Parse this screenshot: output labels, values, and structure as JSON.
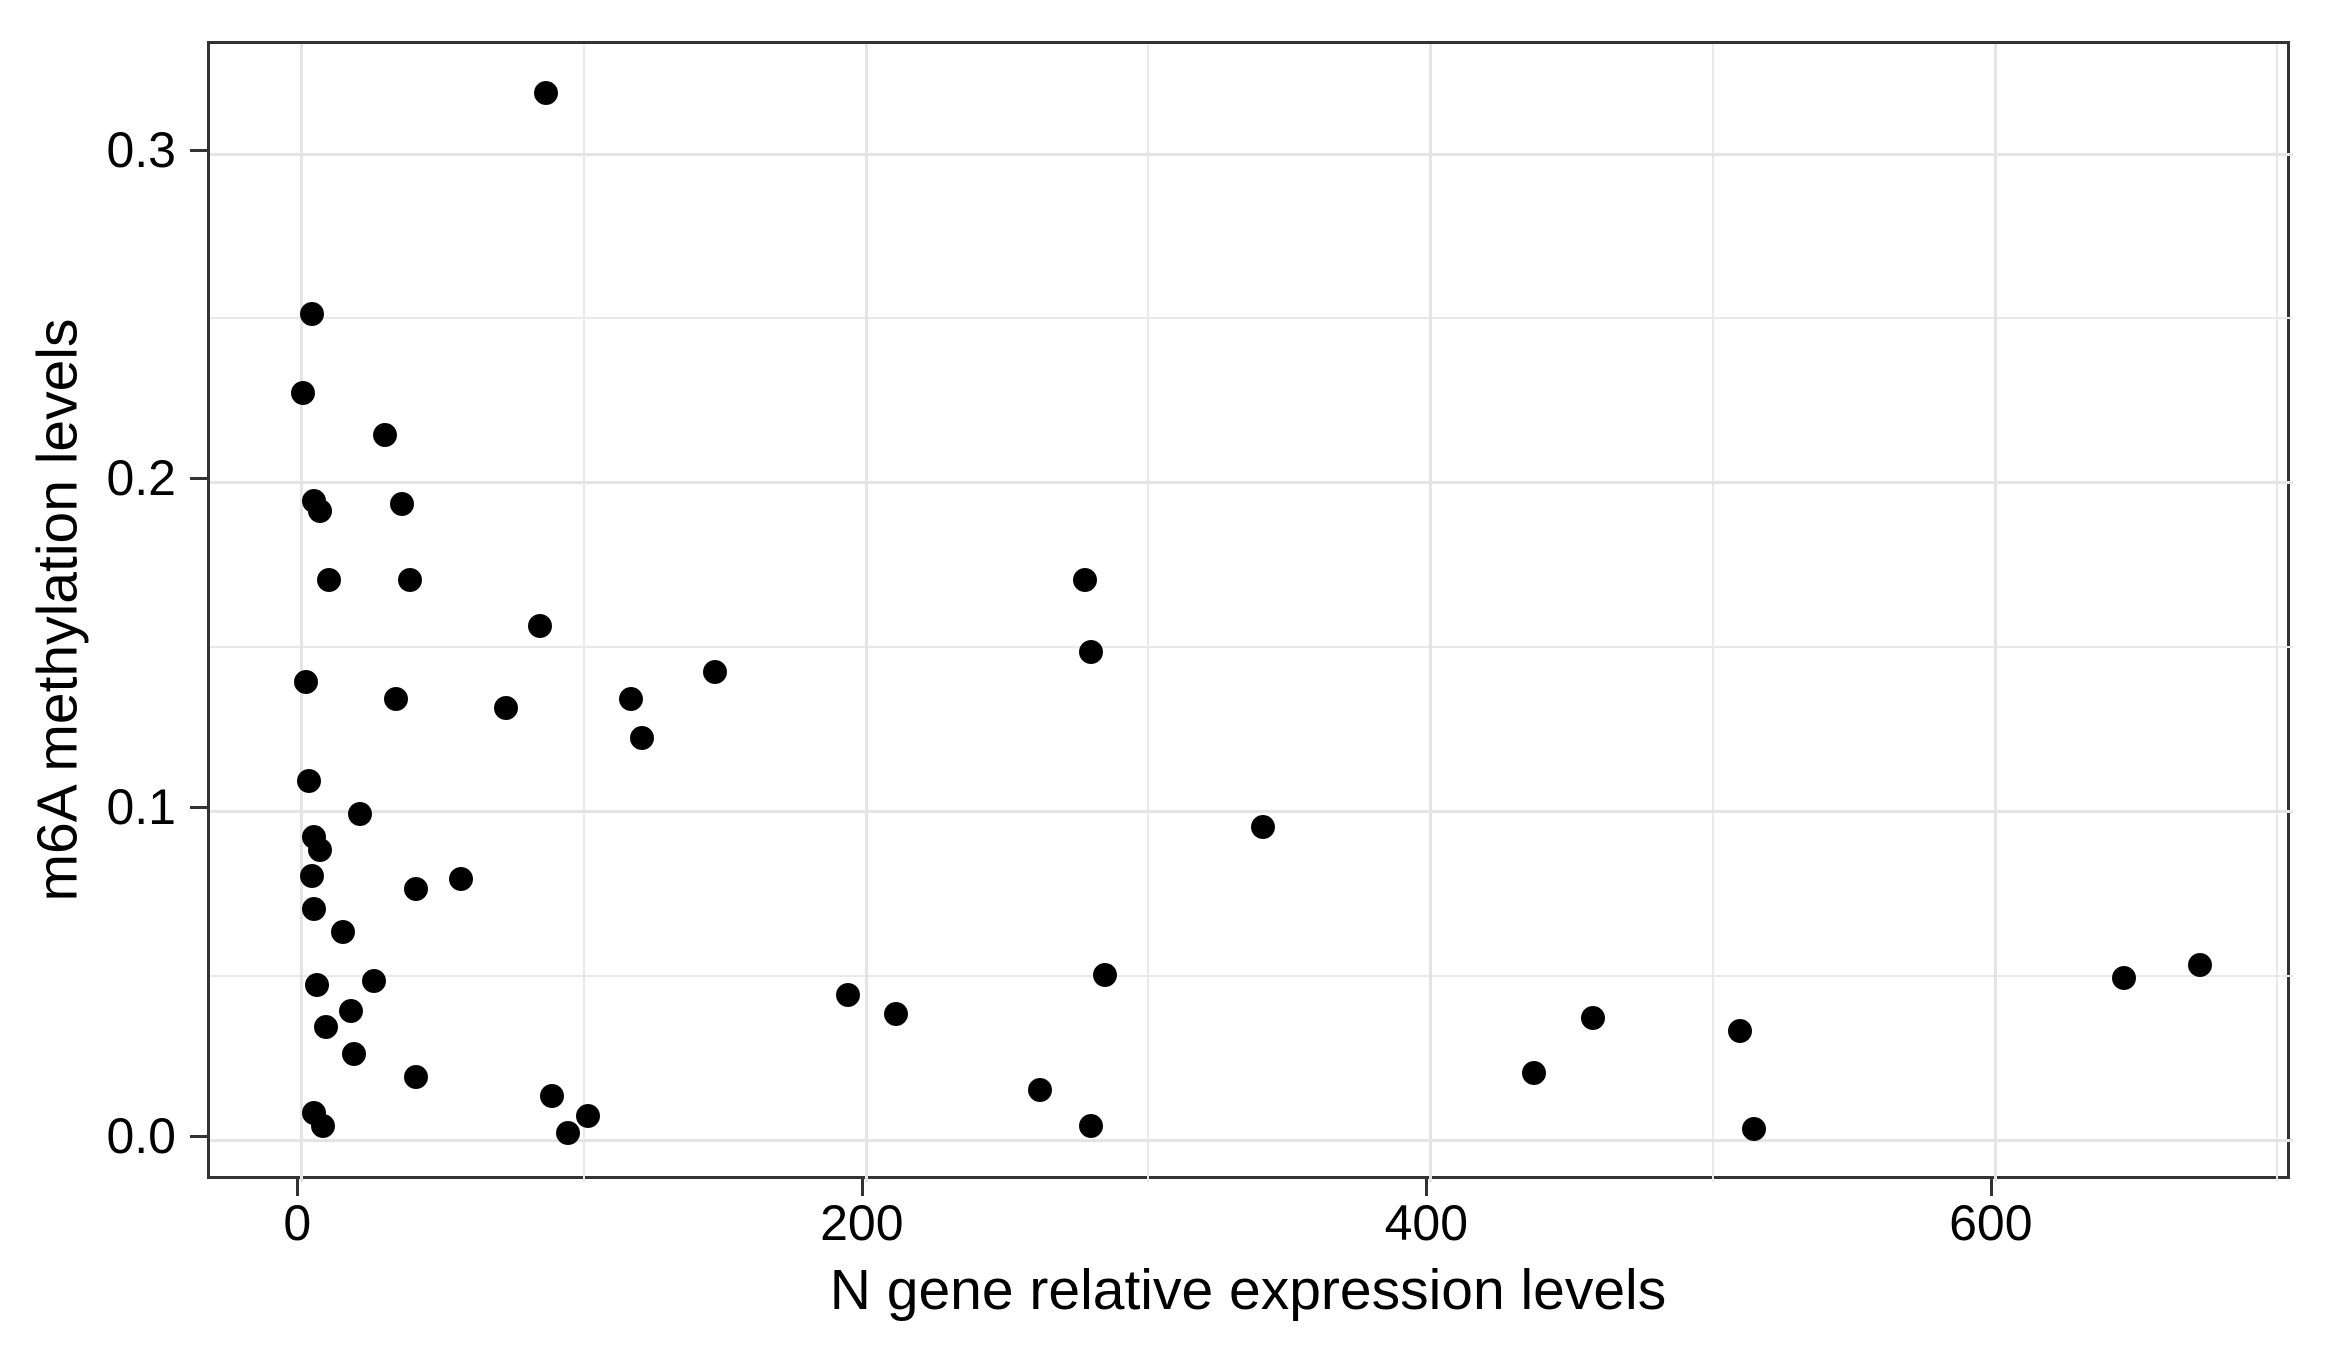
{
  "chart_data": {
    "type": "scatter",
    "title": "",
    "xlabel": "N gene relative expression levels",
    "ylabel": "m6A methylation levels",
    "xlim": [
      -32,
      706
    ],
    "ylim": [
      -0.013,
      0.333
    ],
    "grid": true,
    "legend": "none",
    "point_color": "#000000",
    "panel_border_color": "#333333",
    "major_grid_color": "#e4e4e4",
    "minor_grid_color": "#e9e9e9",
    "x_ticks": [
      {
        "value": 0,
        "label": "0"
      },
      {
        "value": 200,
        "label": "200"
      },
      {
        "value": 400,
        "label": "400"
      },
      {
        "value": 600,
        "label": "600"
      }
    ],
    "y_ticks": [
      {
        "value": 0.0,
        "label": "0.0"
      },
      {
        "value": 0.1,
        "label": "0.1"
      },
      {
        "value": 0.2,
        "label": "0.2"
      },
      {
        "value": 0.3,
        "label": "0.3"
      }
    ],
    "x_minor_gridlines": [
      100,
      300,
      500,
      700
    ],
    "y_minor_gridlines": [
      0.05,
      0.15,
      0.25
    ],
    "points": [
      [
        87,
        0.318
      ],
      [
        4,
        0.251
      ],
      [
        1,
        0.227
      ],
      [
        30,
        0.214
      ],
      [
        5,
        0.194
      ],
      [
        7,
        0.191
      ],
      [
        36,
        0.193
      ],
      [
        10,
        0.17
      ],
      [
        39,
        0.17
      ],
      [
        85,
        0.156
      ],
      [
        2,
        0.139
      ],
      [
        34,
        0.134
      ],
      [
        73,
        0.131
      ],
      [
        117,
        0.134
      ],
      [
        121,
        0.122
      ],
      [
        147,
        0.142
      ],
      [
        3,
        0.109
      ],
      [
        21,
        0.099
      ],
      [
        5,
        0.092
      ],
      [
        7,
        0.088
      ],
      [
        4,
        0.08
      ],
      [
        5,
        0.07
      ],
      [
        15,
        0.063
      ],
      [
        41,
        0.076
      ],
      [
        57,
        0.079
      ],
      [
        6,
        0.047
      ],
      [
        26,
        0.048
      ],
      [
        18,
        0.039
      ],
      [
        9,
        0.034
      ],
      [
        19,
        0.026
      ],
      [
        41,
        0.019
      ],
      [
        5,
        0.008
      ],
      [
        8,
        0.004
      ],
      [
        89,
        0.013
      ],
      [
        102,
        0.007
      ],
      [
        95,
        0.002
      ],
      [
        194,
        0.044
      ],
      [
        211,
        0.038
      ],
      [
        262,
        0.015
      ],
      [
        280,
        0.004
      ],
      [
        285,
        0.05
      ],
      [
        278,
        0.17
      ],
      [
        280,
        0.148
      ],
      [
        341,
        0.095
      ],
      [
        437,
        0.02
      ],
      [
        458,
        0.037
      ],
      [
        510,
        0.033
      ],
      [
        515,
        0.003
      ],
      [
        646,
        0.049
      ],
      [
        673,
        0.053
      ]
    ]
  }
}
